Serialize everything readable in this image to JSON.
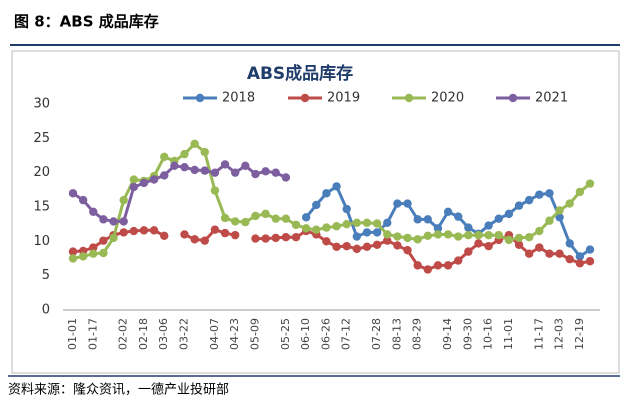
{
  "header": {
    "title": "图 8：ABS 成品库存"
  },
  "chart_data": {
    "type": "line",
    "title": "ABS成品库存",
    "categories": [
      "01-01",
      null,
      "01-17",
      null,
      null,
      "02-02",
      null,
      "02-18",
      null,
      "03-06",
      null,
      "03-22",
      null,
      null,
      "04-07",
      null,
      "04-23",
      null,
      "05-09",
      null,
      null,
      "05-25",
      null,
      "06-10",
      null,
      "06-26",
      null,
      "07-12",
      null,
      null,
      "07-28",
      null,
      "08-13",
      null,
      "08-29",
      null,
      null,
      "09-14",
      null,
      "09-30",
      null,
      "10-16",
      null,
      "11-01",
      null,
      null,
      "11-17",
      null,
      "12-03",
      null,
      "12-19",
      null
    ],
    "series": [
      {
        "name": "2018",
        "color": "#4a7ebb",
        "values": [
          null,
          null,
          null,
          null,
          null,
          null,
          null,
          null,
          null,
          null,
          null,
          null,
          null,
          null,
          null,
          null,
          null,
          null,
          null,
          null,
          null,
          null,
          null,
          13.5,
          15.3,
          17,
          18,
          14.7,
          10.7,
          11.3,
          11.3,
          12.7,
          15.5,
          15.5,
          13.2,
          13.2,
          11.9,
          14.3,
          13.6,
          12,
          11.1,
          12.3,
          13.3,
          14,
          15.2,
          16,
          16.8,
          17,
          13.5,
          9.7,
          7.8,
          8.8
        ]
      },
      {
        "name": "2019",
        "color": "#be4b48",
        "values": [
          8.5,
          8.6,
          9.1,
          10.1,
          10.9,
          11.3,
          11.5,
          11.6,
          11.6,
          10.8,
          null,
          11,
          10.3,
          10.1,
          11.7,
          11.2,
          10.9,
          null,
          10.4,
          10.4,
          10.5,
          10.6,
          10.6,
          11.5,
          11,
          10,
          9.2,
          9.3,
          8.9,
          9.2,
          9.5,
          10.1,
          9.4,
          8.7,
          6.5,
          5.9,
          6.5,
          6.5,
          7.2,
          8.5,
          9.7,
          9.3,
          10.2,
          10.9,
          9.5,
          8.2,
          9.1,
          8.2,
          8.2,
          7.4,
          6.8,
          7.1
        ]
      },
      {
        "name": "2020",
        "color": "#98b954",
        "values": [
          7.5,
          7.8,
          8.2,
          8.3,
          10.5,
          16,
          19,
          18.8,
          19.5,
          22.3,
          21.7,
          22.7,
          24.2,
          23,
          17.4,
          13.4,
          12.9,
          12.8,
          13.7,
          14,
          13.3,
          13.3,
          12.4,
          11.9,
          11.7,
          12,
          12.2,
          12.5,
          12.7,
          12.7,
          12.6,
          11,
          10.7,
          10.5,
          10.3,
          10.8,
          11,
          11,
          10.7,
          10.9,
          10.9,
          10.9,
          10.9,
          10.2,
          10.5,
          10.6,
          11.5,
          13,
          14.5,
          15.5,
          17.2,
          18.4
        ]
      },
      {
        "name": "2021",
        "color": "#7d5fa0",
        "values": [
          17,
          16,
          14.3,
          13.2,
          12.9,
          12.9,
          17.9,
          18.5,
          19,
          19.6,
          21,
          20.8,
          20.4,
          20.3,
          20,
          21.2,
          20,
          21,
          19.8,
          20.2,
          20,
          19.3,
          null,
          null,
          null,
          null,
          null,
          null,
          null,
          null,
          null,
          null,
          null,
          null,
          null,
          null,
          null,
          null,
          null,
          null,
          null,
          null,
          null,
          null,
          null,
          null,
          null,
          null,
          null,
          null,
          null,
          null
        ]
      }
    ],
    "ylim": [
      0,
      30
    ],
    "yticks": [
      0,
      5,
      10,
      15,
      20,
      25,
      30
    ],
    "grid": false,
    "legend": "top"
  },
  "footer": {
    "source": "资料来源：隆众资讯，一德产业投研部"
  }
}
